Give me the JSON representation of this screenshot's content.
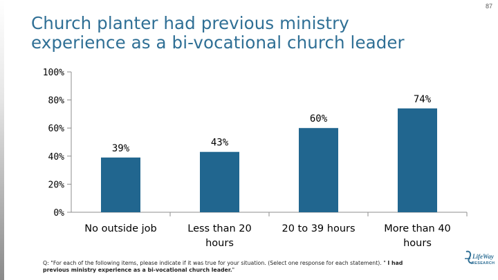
{
  "page_number": "87",
  "title_lines": [
    "Church planter had previous ministry",
    "experience as a bi-vocational church leader"
  ],
  "footnote": {
    "question": "Q: \"For each of the following items, please indicate if it was true for your situation. (Select one response for each statement). \"",
    "item": "I had previous ministry experience as a bi-vocational church leader.",
    "suffix": "\""
  },
  "logo": {
    "text": "LifeWay",
    "sub": "RESEARCH"
  },
  "colors": {
    "bar": "#21668f",
    "title": "#2f6f95",
    "axis": "#8c8c8c"
  },
  "chart_data": {
    "type": "bar",
    "categories": [
      [
        "No outside job"
      ],
      [
        "Less than 20",
        "hours"
      ],
      [
        "20 to 39 hours"
      ],
      [
        "More than 40",
        "hours"
      ]
    ],
    "values": [
      39,
      43,
      60,
      74
    ],
    "data_labels": [
      "39%",
      "43%",
      "60%",
      "74%"
    ],
    "ylim": [
      0,
      100
    ],
    "yticks": [
      0,
      20,
      40,
      60,
      80,
      100
    ],
    "ytick_labels": [
      "0%",
      "20%",
      "40%",
      "60%",
      "80%",
      "100%"
    ],
    "grid": false,
    "legend": "none",
    "title": "",
    "xlabel": "",
    "ylabel": ""
  }
}
